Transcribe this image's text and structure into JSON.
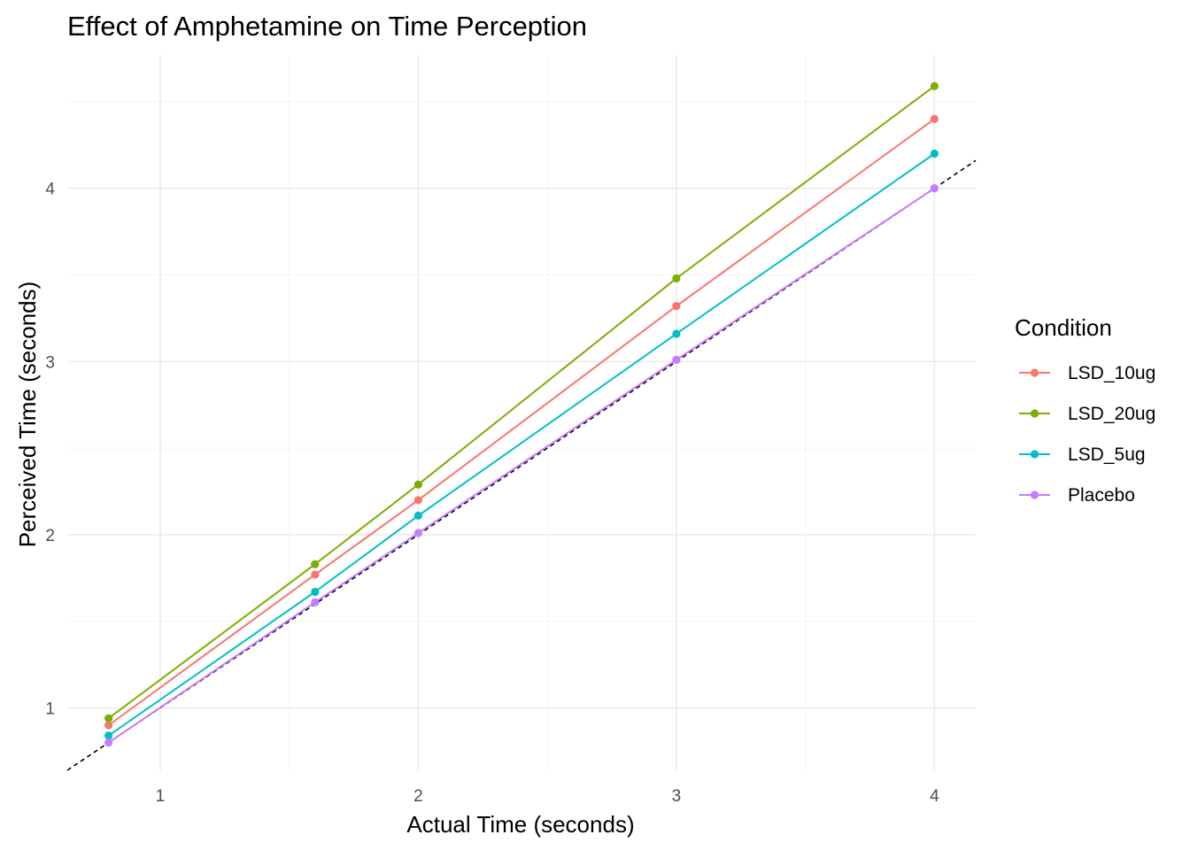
{
  "chart_data": {
    "type": "line",
    "title": "Effect of Amphetamine on Time Perception",
    "xlabel": "Actual Time (seconds)",
    "ylabel": "Perceived Time (seconds)",
    "x": [
      0.8,
      1.6,
      2.0,
      3.0,
      4.0
    ],
    "xlim": [
      0.64,
      4.16
    ],
    "ylim": [
      0.64,
      4.77
    ],
    "xticks": [
      1,
      2,
      3,
      4
    ],
    "yticks": [
      1,
      2,
      3,
      4
    ],
    "grid": true,
    "legend": {
      "title": "Condition",
      "position": "right"
    },
    "reference_line": {
      "slope": 1,
      "intercept": 0,
      "style": "dashed",
      "color": "#000000"
    },
    "series": [
      {
        "name": "LSD_10ug",
        "color": "#F8766D",
        "values": [
          0.9,
          1.77,
          2.2,
          3.32,
          4.4
        ]
      },
      {
        "name": "LSD_20ug",
        "color": "#7CAE00",
        "values": [
          0.94,
          1.83,
          2.29,
          3.48,
          4.59
        ]
      },
      {
        "name": "LSD_5ug",
        "color": "#00BFC4",
        "values": [
          0.84,
          1.67,
          2.11,
          3.16,
          4.2
        ]
      },
      {
        "name": "Placebo",
        "color": "#C77CFF",
        "values": [
          0.8,
          1.61,
          2.01,
          3.01,
          4.0
        ]
      }
    ]
  }
}
